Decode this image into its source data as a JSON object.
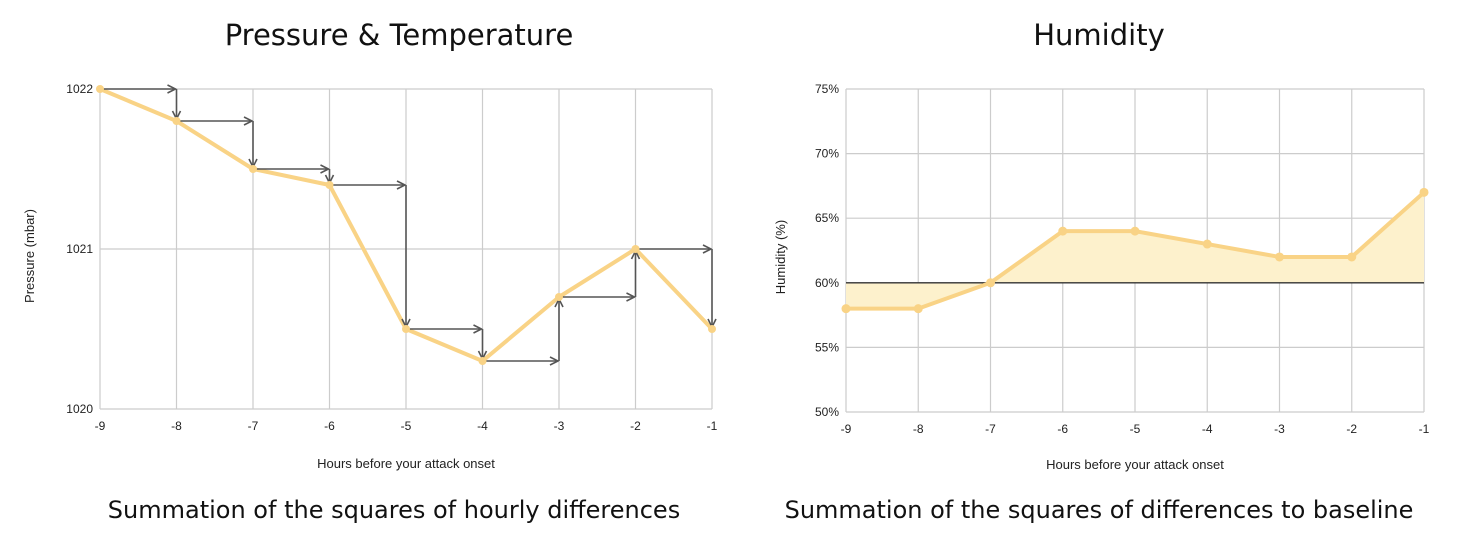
{
  "chart_data": [
    {
      "type": "line",
      "title": "Pressure & Temperature",
      "caption": "Summation of the squares of hourly differences",
      "xlabel": "Hours before your attack onset",
      "ylabel": "Pressure (mbar)",
      "x": [
        -9,
        -8,
        -7,
        -6,
        -5,
        -4,
        -3,
        -2,
        -1
      ],
      "x_tick_labels": [
        "-9",
        "-8",
        "-7",
        "-6",
        "-5",
        "-4",
        "-3",
        "-2",
        "-1"
      ],
      "y_tick_values": [
        1020,
        1021,
        1022
      ],
      "y_tick_labels": [
        "1020",
        "1021",
        "1022"
      ],
      "xlim": [
        -9,
        -1
      ],
      "ylim": [
        1020,
        1022
      ],
      "grid": true,
      "series": [
        {
          "values": [
            1022,
            1021.8,
            1021.5,
            1021.4,
            1020.5,
            1020.3,
            1020.7,
            1021,
            1020.5
          ]
        }
      ],
      "annotations": "step arrows: horizontal then vertical between consecutive hourly points",
      "colors": {
        "line": "#f9d386",
        "arrow": "#555555",
        "grid": "#cccccc"
      }
    },
    {
      "type": "area",
      "title": "Humidity",
      "caption": "Summation of the squares of  differences to baseline",
      "xlabel": "Hours before your attack onset",
      "ylabel": "Humidity (%)",
      "x": [
        -9,
        -8,
        -7,
        -6,
        -5,
        -4,
        -3,
        -2,
        -1
      ],
      "x_tick_labels": [
        "-9",
        "-8",
        "-7",
        "-6",
        "-5",
        "-4",
        "-3",
        "-2",
        "-1"
      ],
      "y_tick_values": [
        50,
        55,
        60,
        65,
        70,
        75
      ],
      "y_tick_labels": [
        "50%",
        "55%",
        "60%",
        "65%",
        "70%",
        "75%"
      ],
      "xlim": [
        -9,
        -1
      ],
      "ylim": [
        50,
        75
      ],
      "grid": true,
      "baseline": 60,
      "series": [
        {
          "values": [
            58,
            58,
            60,
            64,
            64,
            63,
            62,
            62,
            67
          ]
        }
      ],
      "colors": {
        "line": "#f9d386",
        "fill": "#fdf1cc",
        "baseline": "#333333",
        "grid": "#cccccc"
      }
    }
  ]
}
